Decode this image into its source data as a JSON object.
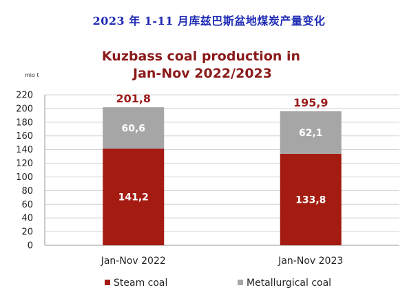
{
  "page": {
    "heading": "2023 年 1-11 月库兹巴斯盆地煤炭产量变化"
  },
  "chart_data": {
    "type": "bar",
    "stacked": true,
    "title_lines": [
      "Kuzbass coal production  in",
      "Jan-Nov 2022/2023"
    ],
    "unit": "mio t",
    "categories": [
      "Jan-Nov 2022",
      "Jan-Nov 2023"
    ],
    "ylim": [
      0,
      220
    ],
    "yticks": [
      0,
      20,
      40,
      60,
      80,
      100,
      120,
      140,
      160,
      180,
      200,
      220
    ],
    "grid": true,
    "legend_position": "bottom",
    "series": [
      {
        "name": "Steam coal",
        "color": "#a41b12",
        "values": [
          141.2,
          133.8
        ],
        "labels": [
          "141,2",
          "133,8"
        ]
      },
      {
        "name": "Metallurgical coal",
        "color": "#a6a6a6",
        "values": [
          60.6,
          62.1
        ],
        "labels": [
          "60,6",
          "62,1"
        ]
      }
    ],
    "totals": [
      201.8,
      195.9
    ],
    "total_labels": [
      "201,8",
      "195,9"
    ]
  }
}
